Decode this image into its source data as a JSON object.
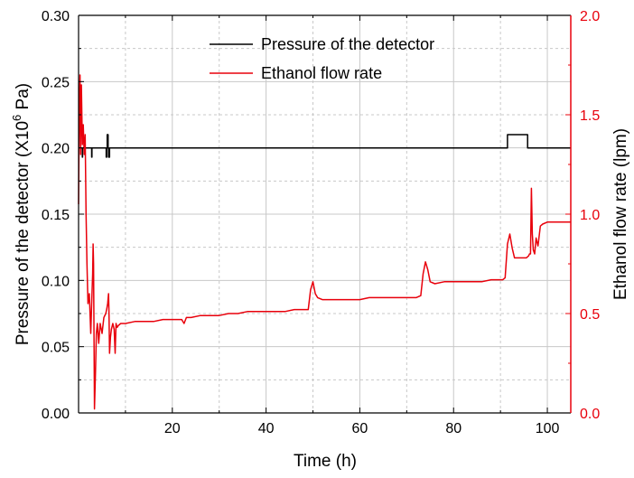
{
  "colors": {
    "pressure": "#000000",
    "ethanol": "#e8000b",
    "grid": "#c8c8c8"
  },
  "chart_data": {
    "type": "line",
    "xlabel": "Time (h)",
    "ylabel_left": "Pressure of the detector (X10",
    "ylabel_left_sup": "6",
    "ylabel_left_tail": " Pa)",
    "ylabel_right": "Ethanol flow rate (lpm)",
    "xlim": [
      0,
      105
    ],
    "ylim_left": [
      0,
      0.3
    ],
    "ylim_right": [
      0,
      2.0
    ],
    "x_ticks": [
      "20",
      "40",
      "60",
      "80",
      "100"
    ],
    "y_left_ticks": [
      "0.00",
      "0.05",
      "0.10",
      "0.15",
      "0.20",
      "0.25",
      "0.30"
    ],
    "y_right_ticks": [
      "0.0",
      "0.5",
      "1.0",
      "1.5",
      "2.0"
    ],
    "grid": true,
    "legend_position": "top",
    "series": [
      {
        "name": "Pressure of the detector",
        "axis": "left",
        "x": [
          0.0,
          0.8,
          0.8,
          0.85,
          0.85,
          1.0,
          2.8,
          2.8,
          2.85,
          2.85,
          3.0,
          5.9,
          5.9,
          6.0,
          6.0,
          6.1,
          6.1,
          6.3,
          6.3,
          6.4,
          6.4,
          6.6,
          6.6,
          6.7,
          6.7,
          7.0,
          91.5,
          91.5,
          95.8,
          95.8,
          105.0
        ],
        "y": [
          0.2,
          0.2,
          0.193,
          0.193,
          0.2,
          0.2,
          0.2,
          0.193,
          0.193,
          0.2,
          0.2,
          0.2,
          0.193,
          0.193,
          0.2,
          0.2,
          0.21,
          0.21,
          0.2,
          0.2,
          0.193,
          0.193,
          0.2,
          0.2,
          0.2,
          0.2,
          0.2,
          0.21,
          0.21,
          0.2,
          0.2
        ]
      },
      {
        "name": "Ethanol flow rate",
        "axis": "right",
        "x": [
          0.0,
          0.15,
          0.3,
          0.45,
          0.6,
          0.8,
          1.0,
          1.2,
          1.4,
          1.6,
          1.8,
          2.0,
          2.3,
          2.6,
          2.8,
          3.0,
          3.1,
          3.2,
          3.4,
          3.6,
          3.8,
          4.0,
          4.3,
          4.6,
          5.0,
          5.4,
          5.8,
          6.0,
          6.2,
          6.4,
          6.5,
          6.6,
          6.8,
          7.0,
          7.3,
          7.6,
          7.8,
          8.0,
          8.2,
          8.5,
          9.0,
          10,
          12,
          14,
          16,
          18,
          20,
          22,
          22.5,
          23,
          24,
          26,
          28,
          30,
          32,
          34,
          36,
          38,
          40,
          42,
          44,
          46,
          48,
          49,
          49.5,
          50,
          50.5,
          51,
          52,
          54,
          56,
          58,
          60,
          62,
          64,
          66,
          68,
          70,
          72,
          73,
          73.5,
          74,
          74.5,
          75,
          76,
          78,
          80,
          82,
          84,
          86,
          88,
          90,
          90.5,
          91,
          91.5,
          92,
          92.5,
          93,
          94,
          95,
          95.5,
          96,
          96.2,
          96.4,
          96.6,
          96.8,
          97,
          97.3,
          97.6,
          97.8,
          98,
          98.5,
          99,
          100,
          102,
          104,
          105
        ],
        "y": [
          1.05,
          1.55,
          1.7,
          1.3,
          1.65,
          1.35,
          1.45,
          1.3,
          1.4,
          1.0,
          0.75,
          0.55,
          0.6,
          0.4,
          0.55,
          0.7,
          0.85,
          0.75,
          0.02,
          0.2,
          0.4,
          0.45,
          0.35,
          0.45,
          0.4,
          0.48,
          0.5,
          0.52,
          0.55,
          0.6,
          0.5,
          0.3,
          0.38,
          0.42,
          0.45,
          0.42,
          0.3,
          0.45,
          0.43,
          0.44,
          0.45,
          0.45,
          0.46,
          0.46,
          0.46,
          0.47,
          0.47,
          0.47,
          0.45,
          0.48,
          0.48,
          0.49,
          0.49,
          0.49,
          0.5,
          0.5,
          0.51,
          0.51,
          0.51,
          0.51,
          0.51,
          0.52,
          0.52,
          0.52,
          0.62,
          0.66,
          0.6,
          0.58,
          0.57,
          0.57,
          0.57,
          0.57,
          0.57,
          0.58,
          0.58,
          0.58,
          0.58,
          0.58,
          0.58,
          0.59,
          0.7,
          0.76,
          0.72,
          0.66,
          0.65,
          0.66,
          0.66,
          0.66,
          0.66,
          0.66,
          0.67,
          0.67,
          0.67,
          0.68,
          0.85,
          0.9,
          0.83,
          0.78,
          0.78,
          0.78,
          0.78,
          0.79,
          0.8,
          0.8,
          1.13,
          0.9,
          0.82,
          0.8,
          0.88,
          0.86,
          0.84,
          0.94,
          0.95,
          0.96,
          0.96,
          0.96,
          0.96
        ]
      }
    ]
  }
}
